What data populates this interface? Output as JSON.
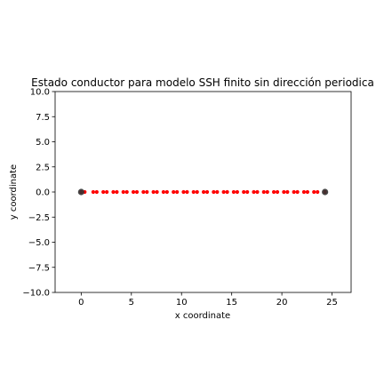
{
  "chart_data": {
    "type": "scatter",
    "title": "Estado conductor para modelo SSH finito sin dirección periodica",
    "xlabel": "x coordinate",
    "ylabel": "y coordinate",
    "xlim": [
      -2.6,
      26.9
    ],
    "ylim": [
      -10.0,
      10.0
    ],
    "xticks": [
      0,
      5,
      10,
      15,
      20,
      25
    ],
    "xtick_labels": [
      "0",
      "5",
      "10",
      "15",
      "20",
      "25"
    ],
    "yticks": [
      -10.0,
      -7.5,
      -5.0,
      -2.5,
      0.0,
      2.5,
      5.0,
      7.5,
      10.0
    ],
    "ytick_labels": [
      "−10.0",
      "−7.5",
      "−5.0",
      "−2.5",
      "0.0",
      "2.5",
      "5.0",
      "7.5",
      "10.0"
    ],
    "grid": false,
    "series": [
      {
        "color": "#ff0000",
        "marker": "dot",
        "x": [
          0,
          0.35,
          1.2,
          1.55,
          2.2,
          2.55,
          3.2,
          3.55,
          4.2,
          4.55,
          5.2,
          5.55,
          6.2,
          6.55,
          7.2,
          7.55,
          8.2,
          8.55,
          9.2,
          9.55,
          10.2,
          10.55,
          11.2,
          11.55,
          12.2,
          12.55,
          13.2,
          13.55,
          14.2,
          14.55,
          15.2,
          15.55,
          16.2,
          16.55,
          17.2,
          17.55,
          18.2,
          18.55,
          19.2,
          19.55,
          20.2,
          20.55,
          21.2,
          21.55,
          22.2,
          22.55,
          23.2,
          23.55,
          24.3
        ],
        "y": [
          0,
          0,
          0,
          0,
          0,
          0,
          0,
          0,
          0,
          0,
          0,
          0,
          0,
          0,
          0,
          0,
          0,
          0,
          0,
          0,
          0,
          0,
          0,
          0,
          0,
          0,
          0,
          0,
          0,
          0,
          0,
          0,
          0,
          0,
          0,
          0,
          0,
          0,
          0,
          0,
          0,
          0,
          0,
          0,
          0,
          0,
          0,
          0,
          0
        ]
      },
      {
        "color": "#333333",
        "marker": "circle",
        "x": [
          0,
          24.3
        ],
        "y": [
          0,
          0
        ]
      }
    ]
  }
}
